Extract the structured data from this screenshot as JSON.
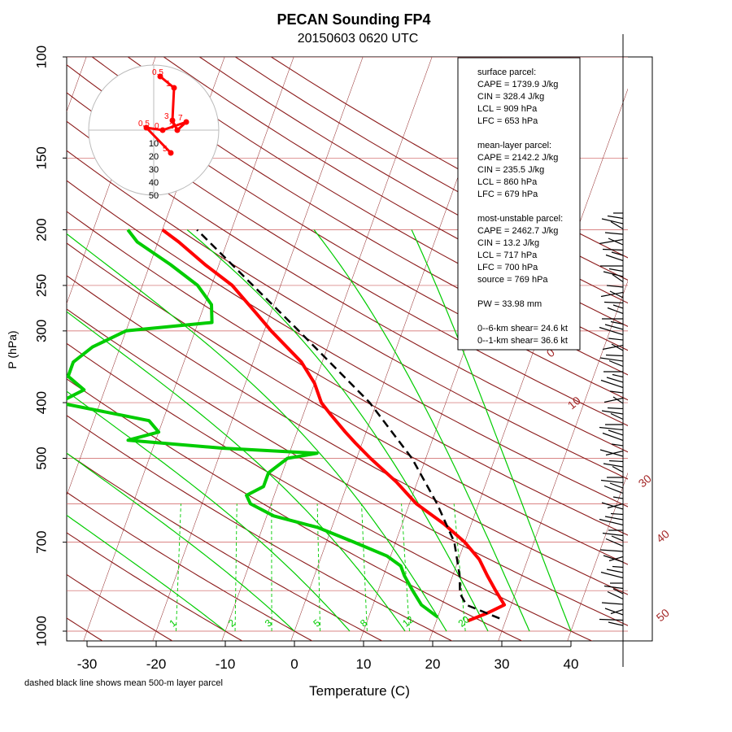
{
  "chart_data": {
    "type": "line",
    "chart_kind": "skew-T log-P sounding diagram",
    "title": "PECAN Sounding FP4",
    "subtitle": "20150603 0620 UTC",
    "xlabel": "Temperature (C)",
    "ylabel": "P (hPa)",
    "footnote": "dashed black line shows mean 500-m layer parcel",
    "xlim": [
      -30,
      40
    ],
    "ylim": [
      1000,
      100
    ],
    "y_scale": "log",
    "x_ticks": [
      -30,
      -20,
      -10,
      0,
      10,
      20,
      30,
      40
    ],
    "y_ticks": [
      100,
      150,
      200,
      250,
      300,
      400,
      500,
      700,
      1000
    ],
    "grid": true,
    "dry_adiabat_labels": [
      "0",
      "10",
      "30",
      "40",
      "50"
    ],
    "mixing_ratio_labels": [
      "1",
      "2",
      "3",
      "5",
      "8",
      "12",
      "20"
    ],
    "series": [
      {
        "role": "temperature",
        "color": "#ff0000",
        "points": [
          {
            "p": 960,
            "t": 24.5
          },
          {
            "p": 930,
            "t": 27.0
          },
          {
            "p": 900,
            "t": 29.0
          },
          {
            "p": 850,
            "t": 27.0
          },
          {
            "p": 800,
            "t": 25.0
          },
          {
            "p": 750,
            "t": 23.0
          },
          {
            "p": 700,
            "t": 20.0
          },
          {
            "p": 650,
            "t": 16.0
          },
          {
            "p": 600,
            "t": 11.0
          },
          {
            "p": 550,
            "t": 7.0
          },
          {
            "p": 500,
            "t": 2.0
          },
          {
            "p": 470,
            "t": -1.0
          },
          {
            "p": 450,
            "t": -3.0
          },
          {
            "p": 420,
            "t": -6.0
          },
          {
            "p": 400,
            "t": -8.0
          },
          {
            "p": 370,
            "t": -10.0
          },
          {
            "p": 340,
            "t": -13.0
          },
          {
            "p": 300,
            "t": -19.0
          },
          {
            "p": 280,
            "t": -22.0
          },
          {
            "p": 250,
            "t": -27.0
          },
          {
            "p": 230,
            "t": -32.0
          },
          {
            "p": 210,
            "t": -37.0
          },
          {
            "p": 200,
            "t": -40.0
          }
        ]
      },
      {
        "role": "dewpoint",
        "color": "#00cc00",
        "points": [
          {
            "p": 945,
            "t": 20.0
          },
          {
            "p": 900,
            "t": 17.0
          },
          {
            "p": 850,
            "t": 15.0
          },
          {
            "p": 800,
            "t": 13.0
          },
          {
            "p": 770,
            "t": 12.0
          },
          {
            "p": 740,
            "t": 9.5
          },
          {
            "p": 700,
            "t": 4.0
          },
          {
            "p": 660,
            "t": -2.0
          },
          {
            "p": 630,
            "t": -9.0
          },
          {
            "p": 600,
            "t": -13.0
          },
          {
            "p": 580,
            "t": -14.0
          },
          {
            "p": 560,
            "t": -12.0
          },
          {
            "p": 530,
            "t": -12.0
          },
          {
            "p": 500,
            "t": -10.0
          },
          {
            "p": 490,
            "t": -6.0
          },
          {
            "p": 480,
            "t": -20.0
          },
          {
            "p": 465,
            "t": -34.0
          },
          {
            "p": 450,
            "t": -30.0
          },
          {
            "p": 430,
            "t": -32.0
          },
          {
            "p": 400,
            "t": -46.0
          },
          {
            "p": 380,
            "t": -43.0
          },
          {
            "p": 360,
            "t": -46.0
          },
          {
            "p": 340,
            "t": -46.0
          },
          {
            "p": 320,
            "t": -44.0
          },
          {
            "p": 300,
            "t": -40.0
          },
          {
            "p": 290,
            "t": -28.0
          },
          {
            "p": 270,
            "t": -29.0
          },
          {
            "p": 250,
            "t": -32.0
          },
          {
            "p": 230,
            "t": -37.0
          },
          {
            "p": 210,
            "t": -43.0
          },
          {
            "p": 200,
            "t": -45.0
          }
        ]
      },
      {
        "role": "parcel",
        "color": "#000000",
        "dashed": true,
        "points": [
          {
            "p": 950,
            "t": 29.0
          },
          {
            "p": 900,
            "t": 23.5
          },
          {
            "p": 860,
            "t": 22.0
          },
          {
            "p": 800,
            "t": 21.0
          },
          {
            "p": 700,
            "t": 18.5
          },
          {
            "p": 600,
            "t": 14.0
          },
          {
            "p": 500,
            "t": 8.0
          },
          {
            "p": 400,
            "t": -1.0
          },
          {
            "p": 300,
            "t": -15.0
          },
          {
            "p": 250,
            "t": -24.0
          },
          {
            "p": 200,
            "t": -35.0
          }
        ]
      }
    ],
    "stats_box": [
      "surface parcel:",
      "CAPE = 1739.9 J/kg",
      "CIN = 328.4 J/kg",
      "LCL = 909 hPa",
      "LFC = 653 hPa",
      "",
      "mean-layer parcel:",
      "CAPE = 2142.2 J/kg",
      "CIN = 235.5 J/kg",
      "LCL = 860 hPa",
      "LFC = 679 hPa",
      "",
      "most-unstable parcel:",
      "CAPE = 2462.7 J/kg",
      "CIN = 13.2 J/kg",
      "LCL = 717 hPa",
      "LFC = 700 hPa",
      "source = 769 hPa",
      "",
      "PW =  33.98 mm",
      "",
      "0--6-km shear= 24.6 kt",
      "0--1-km shear= 36.6 kt"
    ],
    "hodograph": {
      "ring_labels": [
        "10",
        "20",
        "30",
        "40",
        "50"
      ],
      "point_labels": [
        "0.5",
        "1",
        "3",
        "2",
        "7",
        "0",
        "0.5",
        "5"
      ]
    }
  },
  "colors": {
    "temperature": "#ff0000",
    "dewpoint": "#00cc00",
    "parcel": "#000000",
    "isotherm": "#8b1a1a",
    "mixing_ratio": "#00cc00",
    "isobar": "#cd5c5c"
  }
}
